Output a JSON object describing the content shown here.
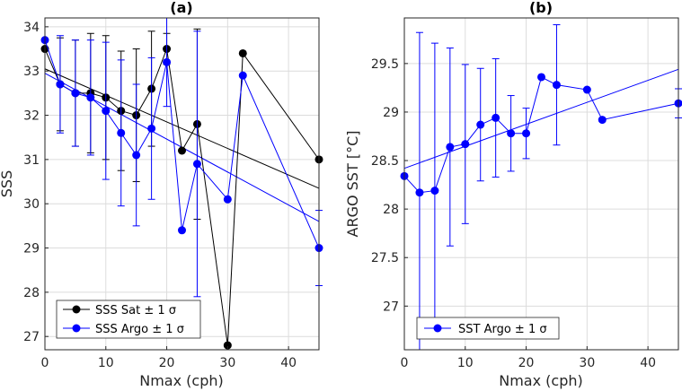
{
  "chart_data": [
    {
      "type": "line",
      "title": "(a)",
      "xlabel": "Nmax (cph)",
      "ylabel": "SSS",
      "xlim": [
        0,
        45
      ],
      "ylim": [
        26.7,
        34.2
      ],
      "x_ticks": [
        "0",
        "10",
        "20",
        "30",
        "40"
      ],
      "y_ticks": [
        "27",
        "28",
        "29",
        "30",
        "31",
        "32",
        "33",
        "34"
      ],
      "grid": true,
      "legend_location": "bottom-left",
      "series": [
        {
          "name": "SSS Sat ± 1 σ",
          "color": "#000000",
          "x": [
            0,
            2.5,
            5,
            7.5,
            10,
            12.5,
            15,
            17.5,
            20,
            22.5,
            25,
            30,
            32.5,
            45
          ],
          "y": [
            33.5,
            32.7,
            32.5,
            32.5,
            32.4,
            32.1,
            32.0,
            32.6,
            33.5,
            31.2,
            31.8,
            26.8,
            33.4,
            31.0
          ],
          "err": [
            0,
            1.05,
            1.2,
            1.35,
            1.4,
            1.35,
            1.5,
            1.3,
            0.35,
            0,
            2.15,
            0,
            0,
            0
          ]
        },
        {
          "name": "SSS Argo ± 1 σ",
          "color": "#0000ff",
          "x": [
            0,
            2.5,
            5,
            7.5,
            10,
            12.5,
            15,
            17.5,
            20,
            22.5,
            25,
            30,
            32.5,
            45
          ],
          "y": [
            33.7,
            32.7,
            32.5,
            32.4,
            32.1,
            31.6,
            31.1,
            31.7,
            33.2,
            29.4,
            30.9,
            30.1,
            32.9,
            29.0
          ],
          "err": [
            0,
            1.1,
            1.2,
            1.3,
            1.55,
            1.65,
            1.6,
            1.6,
            1.0,
            0,
            3.0,
            0,
            0,
            0.85
          ]
        }
      ],
      "fits": [
        {
          "color": "#000000",
          "x": [
            0,
            45
          ],
          "y": [
            33.05,
            30.35
          ]
        },
        {
          "color": "#0000ff",
          "x": [
            0,
            45
          ],
          "y": [
            32.95,
            29.6
          ]
        }
      ]
    },
    {
      "type": "line",
      "title": "(b)",
      "xlabel": "Nmax (cph)",
      "ylabel": "ARGO SST [°C]",
      "xlim": [
        0,
        45
      ],
      "ylim": [
        26.55,
        29.97
      ],
      "x_ticks": [
        "0",
        "10",
        "20",
        "30",
        "40"
      ],
      "y_ticks": [
        "27",
        "27.5",
        "28",
        "28.5",
        "29",
        "29.5"
      ],
      "grid": true,
      "legend_location": "bottom-left",
      "series": [
        {
          "name": "SST Argo ± 1 σ",
          "color": "#0000ff",
          "x": [
            0,
            2.5,
            5,
            7.5,
            10,
            12.5,
            15,
            17.5,
            20,
            22.5,
            25,
            30,
            32.5,
            45
          ],
          "y": [
            28.34,
            28.17,
            28.19,
            28.64,
            28.67,
            28.87,
            28.94,
            28.78,
            28.78,
            29.36,
            29.28,
            29.23,
            28.92,
            29.09
          ],
          "err": [
            0,
            1.65,
            1.52,
            1.02,
            0.82,
            0.58,
            0.61,
            0.39,
            0.26,
            0,
            0.62,
            0,
            0,
            0.15
          ]
        }
      ],
      "fits": [
        {
          "color": "#0000ff",
          "x": [
            0,
            45
          ],
          "y": [
            28.42,
            29.44
          ]
        }
      ]
    }
  ]
}
